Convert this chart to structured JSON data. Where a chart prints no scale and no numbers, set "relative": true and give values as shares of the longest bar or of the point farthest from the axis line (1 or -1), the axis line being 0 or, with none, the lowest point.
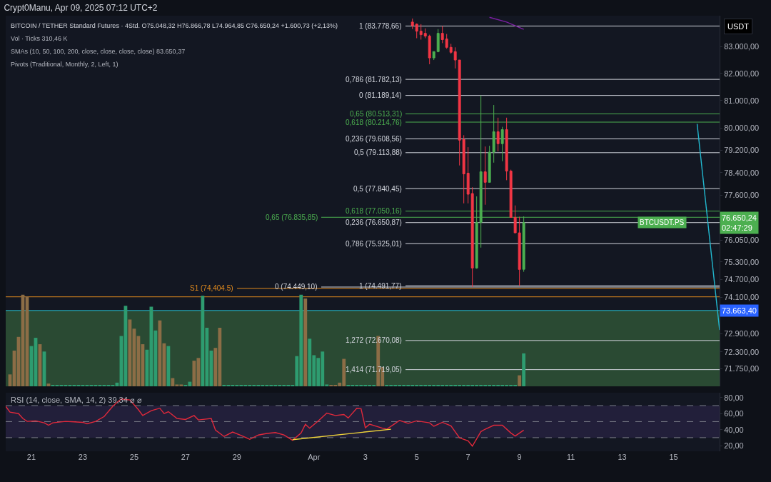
{
  "chart_data": [
    {
      "type": "candlestick",
      "title": "Crypt0Manu, Apr 09, 2025 07:12 UTC+2",
      "subtitle": "BITCOIN / TETHER Standard Futures · 4Std. O75.048,32 H76.866,78 L74.964,85 C76.650,24 +1.600,73 (+2,13%)",
      "ylabel": "USDT",
      "x": [
        "2025-04-04T20:00",
        "2025-04-05T00:00",
        "2025-04-05T04:00",
        "2025-04-05T08:00",
        "2025-04-05T12:00",
        "2025-04-05T16:00",
        "2025-04-05T20:00",
        "2025-04-06T00:00",
        "2025-04-06T04:00",
        "2025-04-06T08:00",
        "2025-04-06T12:00",
        "2025-04-06T16:00",
        "2025-04-06T20:00",
        "2025-04-07T00:00",
        "2025-04-07T04:00",
        "2025-04-07T08:00",
        "2025-04-07T12:00",
        "2025-04-07T16:00",
        "2025-04-07T20:00",
        "2025-04-08T00:00",
        "2025-04-08T04:00",
        "2025-04-08T08:00",
        "2025-04-08T12:00",
        "2025-04-08T16:00",
        "2025-04-08T20:00",
        "2025-04-09T00:00",
        "2025-04-09T04:00"
      ],
      "ohlc": [
        [
          83929,
          84063,
          83662,
          83796
        ],
        [
          83849,
          83876,
          83317,
          83583
        ],
        [
          83583,
          83849,
          83264,
          83450
        ],
        [
          83503,
          83689,
          83317,
          83397
        ],
        [
          83397,
          83450,
          82343,
          82579
        ],
        [
          82579,
          82815,
          82500,
          82815
        ],
        [
          82815,
          83662,
          82789,
          83503
        ],
        [
          83503,
          83778.66,
          83132,
          83264
        ],
        [
          83291,
          83477,
          82921,
          82974
        ],
        [
          82974,
          83106,
          82736,
          82789
        ],
        [
          82815,
          82974,
          82186,
          82500
        ],
        [
          82500,
          82500,
          78658,
          79563
        ],
        [
          79588,
          79740,
          77321,
          78359
        ],
        [
          78384,
          79311,
          77321,
          77640
        ],
        [
          77665,
          77887,
          74449.1,
          75092
        ],
        [
          75092,
          77566,
          75068,
          76660
        ],
        [
          76660,
          81189.14,
          75788,
          78433
        ],
        [
          78433,
          79336,
          77272,
          78060
        ],
        [
          78060,
          79361,
          78060,
          79134
        ],
        [
          79134,
          80838,
          78758,
          79867
        ],
        [
          79867,
          80376,
          79159,
          79436
        ],
        [
          79436,
          80045,
          78808,
          79943
        ],
        [
          79943,
          80376,
          78135,
          78458
        ],
        [
          78458,
          78508,
          76831,
          76831
        ],
        [
          76831,
          77248,
          76296,
          76296
        ],
        [
          76296,
          76855,
          74491.77,
          75044
        ],
        [
          75048.32,
          76866.78,
          74964.85,
          76650.24
        ]
      ],
      "colors": [
        "#f23645",
        "#f23645",
        "#f23645",
        "#f23645",
        "#f23645",
        "#4caf50",
        "#4caf50",
        "#f23645",
        "#f23645",
        "#f23645",
        "#f23645",
        "#f23645",
        "#f23645",
        "#f23645",
        "#f23645",
        "#4caf50",
        "#4caf50",
        "#f23645",
        "#4caf50",
        "#4caf50",
        "#f23645",
        "#4caf50",
        "#f23645",
        "#f23645",
        "#f23645",
        "#f23645",
        "#4caf50"
      ],
      "series": [
        {
          "type": "line",
          "color": "#7b1fa2",
          "x": [
            "2025-04-07T20:00",
            "2025-04-08T12:00",
            "2025-04-09T04:00"
          ],
          "values": [
            84110,
            83930,
            83650.37
          ]
        },
        {
          "type": "line",
          "color": "#22b8cf",
          "x": [
            "2025-04-15T22:00",
            "2025-04-16T19:00"
          ],
          "values": [
            80150,
            73017
          ]
        }
      ],
      "log": true,
      "xlim": [
        "2025-03-20T00:00",
        "2025-04-16T19:00"
      ],
      "ylim": [
        71180,
        84170
      ],
      "yticks": [
        {
          "value": 83000,
          "label": "83.000,00"
        },
        {
          "value": 82000,
          "label": "82.000,00"
        },
        {
          "value": 81000,
          "label": "81.000,00"
        },
        {
          "value": 80000,
          "label": "80.000,00"
        },
        {
          "value": 79200,
          "label": "79.200,00"
        },
        {
          "value": 78400,
          "label": "78.400,00"
        },
        {
          "value": 77600,
          "label": "77.600,00"
        },
        {
          "value": 76050,
          "label": "76.050,00"
        },
        {
          "value": 75300,
          "label": "75.300,00"
        },
        {
          "value": 74700,
          "label": "74.700,00"
        },
        {
          "value": 74100,
          "label": "74.100,00"
        },
        {
          "value": 72900,
          "label": "72.900,00"
        },
        {
          "value": 72300,
          "label": "72.300,00"
        },
        {
          "value": 71750,
          "label": "71.750,00"
        }
      ],
      "tick_labels": "y",
      "ref_lines": [
        {
          "axis": "y",
          "value": 83778.66,
          "label": "1 (83.778,66)",
          "color": "#d1d4dc"
        },
        {
          "axis": "y",
          "value": 81782.13,
          "label": "0,786 (81.782,13)",
          "color": "#d1d4dc"
        },
        {
          "axis": "y",
          "value": 81189.14,
          "label": "0 (81.189,14)",
          "color": "#d1d4dc"
        },
        {
          "axis": "y",
          "value": 80513.31,
          "label": "0,65 (80.513,31)",
          "color": "#4caf50"
        },
        {
          "axis": "y",
          "value": 80214.76,
          "label": "0,618 (80.214,76)",
          "color": "#4caf50"
        },
        {
          "axis": "y",
          "value": 79608.56,
          "label": "0,236 (79.608,56)",
          "color": "#d1d4dc"
        },
        {
          "axis": "y",
          "value": 79113.88,
          "label": "0,5 (79.113,88)",
          "color": "#d1d4dc"
        },
        {
          "axis": "y",
          "value": 77840.45,
          "label": "0,5 (77.840,45)",
          "color": "#d1d4dc"
        },
        {
          "axis": "y",
          "value": 77050.16,
          "label": "0,618 (77.050,16)",
          "color": "#4caf50"
        },
        {
          "axis": "y",
          "value": 76835.85,
          "label": "0,65 (76.835,85)",
          "color": "#4caf50"
        },
        {
          "axis": "y",
          "value": 76650.87,
          "label": "0,236 (76.650,87)",
          "color": "#d1d4dc"
        },
        {
          "axis": "y",
          "value": 75925.01,
          "label": "0,786 (75.925,01)",
          "color": "#d1d4dc"
        },
        {
          "axis": "y",
          "value": 74491.77,
          "label": "1 (74.491,77)",
          "color": "#d1d4dc"
        },
        {
          "axis": "y",
          "value": 74449.1,
          "label": "0 (74.449,10)",
          "color": "#d1d4dc"
        },
        {
          "axis": "y",
          "value": 74404.5,
          "label": "S1 (74,404.5)",
          "color": "#e08a1e"
        },
        {
          "axis": "y",
          "value": 72670.08,
          "label": "1,272 (72.670,08)",
          "color": "#d1d4dc"
        },
        {
          "axis": "y",
          "value": 71719.05,
          "label": "1,414 (71.719,05)",
          "color": "#d1d4dc"
        },
        {
          "axis": "y",
          "value": 74120,
          "color": "#e08a1e"
        },
        {
          "axis": "y",
          "value": 73663.4,
          "color": "#22b8cf"
        }
      ],
      "bands": [
        {
          "axis": "y",
          "from": 71180,
          "to": 73663.4,
          "label": "73.663,40",
          "color": "#2a4a33"
        }
      ],
      "annotations": [
        "SMAs (10, 50, 100, 200, close, close, close, close) 83.650,37",
        "Pivots (Traditional, Monthly, 2, Left, 1)",
        {
          "text": "BTCUSDT.PS",
          "x": "2025-04-15T12:00",
          "y": 76650.24
        },
        {
          "text": "76.650,24\n02:47:29",
          "x": "2025-04-16T19:00",
          "y": 76650.24
        }
      ],
      "grid": false,
      "legend": false
    },
    {
      "type": "bar",
      "title": "Vol · Ticks 310,46 K",
      "relative": true,
      "tick_labels": false,
      "xlim": [
        "2025-03-20T00:00",
        "2025-04-16T19:00"
      ],
      "x": [
        "2025-03-20T04:00",
        "2025-03-20T08:00",
        "2025-03-20T12:00",
        "2025-03-20T16:00",
        "2025-03-20T20:00",
        "2025-03-21T00:00",
        "2025-03-21T04:00",
        "2025-03-21T08:00",
        "2025-03-21T12:00",
        "2025-03-21T16:00",
        "2025-03-21T20:00",
        "2025-03-22T00:00",
        "2025-03-22T04:00",
        "2025-03-22T08:00",
        "2025-03-22T12:00",
        "2025-03-22T16:00",
        "2025-03-22T20:00",
        "2025-03-23T00:00",
        "2025-03-23T04:00",
        "2025-03-23T08:00",
        "2025-03-23T12:00",
        "2025-03-23T16:00",
        "2025-03-23T20:00",
        "2025-03-24T00:00",
        "2025-03-24T04:00",
        "2025-03-24T08:00",
        "2025-03-24T12:00",
        "2025-03-24T16:00",
        "2025-03-24T20:00",
        "2025-03-25T00:00",
        "2025-03-25T04:00",
        "2025-03-25T08:00",
        "2025-03-25T12:00",
        "2025-03-25T16:00",
        "2025-03-25T20:00",
        "2025-03-26T00:00",
        "2025-03-26T04:00",
        "2025-03-26T08:00",
        "2025-03-26T12:00",
        "2025-03-26T16:00",
        "2025-03-26T20:00",
        "2025-03-27T00:00",
        "2025-03-27T04:00",
        "2025-03-27T08:00",
        "2025-03-27T12:00",
        "2025-03-27T16:00",
        "2025-03-27T20:00",
        "2025-03-28T00:00",
        "2025-03-28T04:00",
        "2025-03-28T08:00",
        "2025-03-28T12:00",
        "2025-03-28T16:00",
        "2025-03-28T20:00",
        "2025-03-29T00:00",
        "2025-03-29T04:00",
        "2025-03-29T08:00",
        "2025-03-29T12:00",
        "2025-03-29T16:00",
        "2025-03-29T20:00",
        "2025-03-30T00:00",
        "2025-03-30T04:00",
        "2025-03-30T08:00",
        "2025-03-30T12:00",
        "2025-03-30T16:00",
        "2025-03-30T20:00",
        "2025-03-31T00:00",
        "2025-03-31T04:00",
        "2025-03-31T08:00",
        "2025-03-31T12:00",
        "2025-03-31T16:00",
        "2025-03-31T20:00",
        "2025-04-01T00:00",
        "2025-04-01T04:00",
        "2025-04-01T08:00",
        "2025-04-01T12:00",
        "2025-04-01T16:00",
        "2025-04-01T20:00",
        "2025-04-02T00:00",
        "2025-04-02T04:00",
        "2025-04-02T08:00",
        "2025-04-02T12:00",
        "2025-04-02T16:00",
        "2025-04-02T20:00",
        "2025-04-03T00:00",
        "2025-04-03T04:00",
        "2025-04-03T08:00",
        "2025-04-03T12:00",
        "2025-04-03T16:00",
        "2025-04-03T20:00",
        "2025-04-04T00:00",
        "2025-04-04T04:00",
        "2025-04-04T08:00",
        "2025-04-04T12:00",
        "2025-04-04T16:00",
        "2025-04-04T20:00",
        "2025-04-05T00:00",
        "2025-04-05T04:00",
        "2025-04-05T08:00",
        "2025-04-05T12:00",
        "2025-04-05T16:00",
        "2025-04-05T20:00",
        "2025-04-06T00:00",
        "2025-04-06T04:00",
        "2025-04-06T08:00",
        "2025-04-06T12:00",
        "2025-04-06T16:00",
        "2025-04-06T20:00",
        "2025-04-07T00:00",
        "2025-04-07T04:00",
        "2025-04-07T08:00",
        "2025-04-07T12:00",
        "2025-04-07T16:00",
        "2025-04-07T20:00",
        "2025-04-08T00:00",
        "2025-04-08T04:00",
        "2025-04-08T08:00",
        "2025-04-08T12:00",
        "2025-04-08T16:00",
        "2025-04-08T20:00",
        "2025-04-09T00:00",
        "2025-04-09T04:00"
      ],
      "values": [
        0.13,
        0.39,
        0.54,
        1,
        0.98,
        0.44,
        0.53,
        0.46,
        0.38,
        0.03,
        0.01,
        0.01,
        0.01,
        0.01,
        0.01,
        0.01,
        0.01,
        0.01,
        0.01,
        0.01,
        0.01,
        0.01,
        0.01,
        0.01,
        0.01,
        0.04,
        0.55,
        0.88,
        0.73,
        0.63,
        0.55,
        0.46,
        0.4,
        0.87,
        0.61,
        0.72,
        0.47,
        0.44,
        0.09,
        0.02,
        0.02,
        0.01,
        0.05,
        0.28,
        0.31,
        0.99,
        0.64,
        0.39,
        0.42,
        0.64,
        0.01,
        0.01,
        0.01,
        0.01,
        0.01,
        0.01,
        0.01,
        0.01,
        0.01,
        0.01,
        0.01,
        0.01,
        0.01,
        0.01,
        0.01,
        0.01,
        0.01,
        0.33,
        1,
        0.96,
        0.52,
        0.34,
        0.31,
        0.38,
        0.02,
        0.01,
        0.01,
        0.04,
        0.3,
        0.01,
        0.01,
        0.01,
        0.01,
        0.01,
        0.01,
        0.01,
        0.55,
        0.21,
        0.01,
        0.01,
        0.01,
        0.01,
        0.01,
        0.01,
        0.01,
        0.01,
        0.01,
        0.01,
        0.01,
        0.01,
        0.01,
        0.01,
        0.01,
        0.01,
        0.01,
        0.01,
        0.01,
        0.01,
        0.01,
        0.01,
        0.01,
        0.01,
        0.01,
        0.01,
        0.01,
        0.01,
        0.01,
        0.01,
        0.01,
        0.12,
        0.36
      ],
      "colors": [
        "#8c6d46",
        "#8c6d46",
        "#8c6d46",
        "#8c6d46",
        "#8c6d46",
        "#2e9c70",
        "#2e9c70",
        "#8c6d46",
        "#2e9c70",
        "#8c6d46",
        "#2e9c70",
        "#2e9c70",
        "#2e9c70",
        "#2e9c70",
        "#2e9c70",
        "#2e9c70",
        "#2e9c70",
        "#2e9c70",
        "#2e9c70",
        "#2e9c70",
        "#2e9c70",
        "#2e9c70",
        "#2e9c70",
        "#2e9c70",
        "#2e9c70",
        "#2e9c70",
        "#2e9c70",
        "#2e9c70",
        "#8c6d46",
        "#8c6d46",
        "#8c6d46",
        "#8c6d46",
        "#2e9c70",
        "#2e9c70",
        "#2e9c70",
        "#8c6d46",
        "#8c6d46",
        "#2e9c70",
        "#8c6d46",
        "#8c6d46",
        "#8c6d46",
        "#2e9c70",
        "#2e9c70",
        "#8c6d46",
        "#8c6d46",
        "#2e9c70",
        "#2e9c70",
        "#2e9c70",
        "#8c6d46",
        "#8c6d46",
        "#2e9c70",
        "#2e9c70",
        "#2e9c70",
        "#2e9c70",
        "#2e9c70",
        "#2e9c70",
        "#2e9c70",
        "#2e9c70",
        "#2e9c70",
        "#2e9c70",
        "#2e9c70",
        "#2e9c70",
        "#2e9c70",
        "#2e9c70",
        "#2e9c70",
        "#2e9c70",
        "#2e9c70",
        "#2e9c70",
        "#2e9c70",
        "#8c6d46",
        "#2e9c70",
        "#2e9c70",
        "#2e9c70",
        "#2e9c70",
        "#2e9c70",
        "#8c6d46",
        "#8c6d46",
        "#8c6d46",
        "#8c6d46",
        "#2e9c70",
        "#2e9c70",
        "#2e9c70",
        "#2e9c70",
        "#2e9c70",
        "#2e9c70",
        "#2e9c70",
        "#8c6d46",
        "#8c6d46",
        "#2e9c70",
        "#2e9c70",
        "#2e9c70",
        "#2e9c70",
        "#2e9c70",
        "#2e9c70",
        "#2e9c70",
        "#2e9c70",
        "#2e9c70",
        "#2e9c70",
        "#2e9c70",
        "#2e9c70",
        "#2e9c70",
        "#2e9c70",
        "#2e9c70",
        "#2e9c70",
        "#2e9c70",
        "#2e9c70",
        "#2e9c70",
        "#2e9c70",
        "#2e9c70",
        "#2e9c70",
        "#2e9c70",
        "#2e9c70",
        "#2e9c70",
        "#2e9c70",
        "#2e9c70",
        "#2e9c70",
        "#2e9c70",
        "#2e9c70",
        "#2e9c70",
        "#8c6d46",
        "#2e9c70"
      ],
      "grid": false,
      "legend": false
    },
    {
      "type": "line",
      "title": "RSI (14, close, SMA, 14, 2) 39,34 ⌀ ⌀",
      "series": [
        {
          "color": "#e0293b",
          "x": [
            "2025-03-20T00:00",
            "2025-03-20T04:00",
            "2025-03-20T12:00",
            "2025-03-20T16:00",
            "2025-03-20T20:00",
            "2025-03-21T04:00",
            "2025-03-21T12:00",
            "2025-03-21T16:00",
            "2025-03-21T20:00",
            "2025-03-22T08:00",
            "2025-03-22T16:00",
            "2025-03-23T00:00",
            "2025-03-23T04:00",
            "2025-03-23T12:00",
            "2025-03-23T20:00",
            "2025-03-24T04:00",
            "2025-03-24T08:00",
            "2025-03-24T12:00",
            "2025-03-24T20:00",
            "2025-03-25T04:00",
            "2025-03-25T08:00",
            "2025-03-25T16:00",
            "2025-03-26T00:00",
            "2025-03-26T04:00",
            "2025-03-26T08:00",
            "2025-03-26T16:00",
            "2025-03-27T00:00",
            "2025-03-27T08:00",
            "2025-03-27T12:00",
            "2025-03-28T00:00",
            "2025-03-28T04:00",
            "2025-03-28T12:00",
            "2025-03-28T20:00",
            "2025-03-29T04:00",
            "2025-03-29T12:00",
            "2025-03-29T20:00",
            "2025-03-30T04:00",
            "2025-03-30T12:00",
            "2025-03-30T20:00",
            "2025-03-31T04:00",
            "2025-03-31T12:00",
            "2025-03-31T16:00",
            "2025-03-31T20:00",
            "2025-04-01T04:00",
            "2025-04-01T12:00",
            "2025-04-01T20:00",
            "2025-04-02T04:00",
            "2025-04-02T08:00",
            "2025-04-02T16:00",
            "2025-04-02T20:00",
            "2025-04-03T00:00",
            "2025-04-03T04:00",
            "2025-04-03T16:00",
            "2025-04-03T20:00",
            "2025-04-04T04:00",
            "2025-04-04T08:00",
            "2025-04-04T16:00",
            "2025-04-05T00:00",
            "2025-04-05T12:00",
            "2025-04-05T16:00",
            "2025-04-06T00:00",
            "2025-04-06T08:00",
            "2025-04-06T16:00",
            "2025-04-07T00:00",
            "2025-04-07T04:00",
            "2025-04-07T12:00",
            "2025-04-07T16:00",
            "2025-04-08T00:00",
            "2025-04-08T08:00",
            "2025-04-08T16:00",
            "2025-04-08T20:00",
            "2025-04-09T04:00"
          ],
          "values": [
            69.1,
            61.8,
            60,
            53.9,
            50.3,
            50.9,
            48.5,
            45.5,
            48.5,
            50.3,
            49.7,
            49.1,
            47.3,
            50.3,
            56.4,
            69.1,
            73.9,
            78.2,
            77,
            64.8,
            57.6,
            63.6,
            66.7,
            60,
            62.4,
            53.9,
            52.7,
            57.6,
            52.1,
            53.9,
            39.4,
            31.5,
            37,
            32.7,
            27.9,
            33.3,
            35.2,
            36.4,
            33.3,
            26.7,
            35.8,
            46.7,
            41.8,
            50.9,
            60.6,
            57.6,
            58.8,
            54.5,
            66.7,
            66.1,
            42.4,
            46.7,
            41.8,
            40.6,
            47.9,
            51.5,
            47.9,
            50.9,
            48.5,
            44.2,
            49.1,
            44.8,
            29.7,
            26.1,
            19.4,
            37.6,
            40.6,
            45.5,
            45.5,
            35.8,
            32.1,
            39.4
          ]
        },
        {
          "color": "#f0d43a",
          "x": [
            "2025-03-31T04:00",
            "2025-04-04T00:00"
          ],
          "values": [
            27.5,
            40.5
          ]
        }
      ],
      "xlim": [
        "2025-03-20T00:00",
        "2025-04-16T19:00"
      ],
      "xticks": [
        {
          "value": "2025-03-21",
          "label": "21"
        },
        {
          "value": "2025-03-23",
          "label": "23"
        },
        {
          "value": "2025-03-25",
          "label": "25"
        },
        {
          "value": "2025-03-27",
          "label": "27"
        },
        {
          "value": "2025-03-29",
          "label": "29"
        },
        {
          "value": "2025-04-01",
          "label": "Apr"
        },
        {
          "value": "2025-04-03",
          "label": "3"
        },
        {
          "value": "2025-04-05",
          "label": "5"
        },
        {
          "value": "2025-04-07",
          "label": "7"
        },
        {
          "value": "2025-04-09",
          "label": "9"
        },
        {
          "value": "2025-04-11",
          "label": "11"
        },
        {
          "value": "2025-04-13",
          "label": "13"
        },
        {
          "value": "2025-04-15",
          "label": "15"
        }
      ],
      "ylim": [
        13,
        86
      ],
      "yticks": [
        {
          "value": 20,
          "label": "20,00"
        },
        {
          "value": 40,
          "label": "40,00"
        },
        {
          "value": 60,
          "label": "60,00"
        },
        {
          "value": 80,
          "label": "80,00"
        }
      ],
      "ref_lines": [
        {
          "axis": "y",
          "value": 70,
          "color": "#787b86",
          "line_style": "dashed"
        },
        {
          "axis": "y",
          "value": 50,
          "color": "#787b86",
          "line_style": "dashed"
        },
        {
          "axis": "y",
          "value": 30,
          "color": "#787b86",
          "line_style": "dashed"
        }
      ],
      "bands": [
        {
          "axis": "y",
          "from": 30,
          "to": 70,
          "color": "#221f3a"
        }
      ],
      "grid": false,
      "legend": false
    }
  ]
}
